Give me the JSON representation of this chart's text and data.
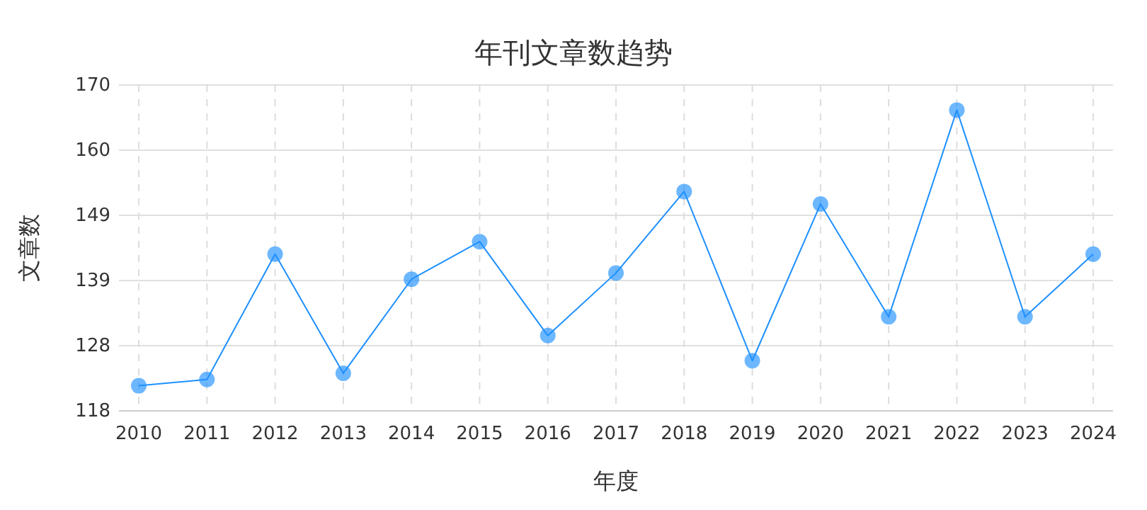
{
  "chart_data": {
    "type": "line",
    "title": "年刊文章数趋势",
    "xlabel": "年度",
    "ylabel": "文章数",
    "categories": [
      "2010",
      "2011",
      "2012",
      "2013",
      "2014",
      "2015",
      "2016",
      "2017",
      "2018",
      "2019",
      "2020",
      "2021",
      "2022",
      "2023",
      "2024"
    ],
    "series": [
      {
        "color": "#1e90ff",
        "values": [
          122,
          123,
          143,
          124,
          139,
          145,
          130,
          140,
          153,
          126,
          151,
          133,
          166,
          133,
          143
        ]
      }
    ],
    "ylim": [
      118,
      170
    ],
    "yticks": [
      118,
      {
        "value": 128.4,
        "label": "128"
      },
      {
        "value": 138.8,
        "label": "139"
      },
      {
        "value": 149.2,
        "label": "149"
      },
      {
        "value": 159.6,
        "label": "160"
      },
      170
    ],
    "grid": true,
    "marker": "circle",
    "line_style": "solid"
  }
}
